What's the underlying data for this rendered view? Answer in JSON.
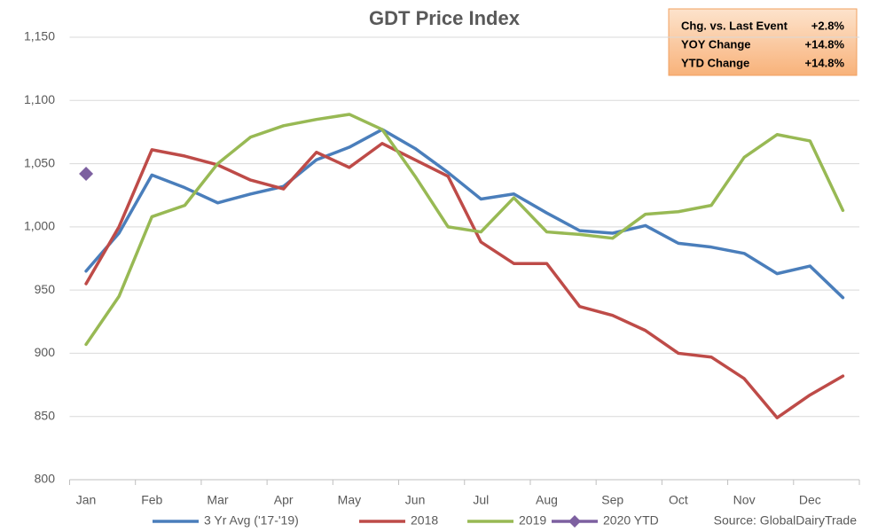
{
  "chart_data": {
    "type": "line",
    "title": "GDT Price Index",
    "categories": [
      "Jan",
      null,
      "Feb",
      null,
      "Mar",
      null,
      "Apr",
      null,
      "May",
      null,
      "Jun",
      null,
      "Jul",
      null,
      "Aug",
      null,
      "Sep",
      null,
      "Oct",
      null,
      "Nov",
      null,
      "Dec",
      null
    ],
    "series": [
      {
        "name": "3 Yr Avg ('17-'19)",
        "color": "#4a7ebb",
        "values": [
          965,
          995,
          1041,
          1031,
          1019,
          1026,
          1032,
          1053,
          1063,
          1077,
          1062,
          1043,
          1022,
          1026,
          1011,
          997,
          995,
          1001,
          987,
          984,
          979,
          963,
          969,
          944
        ]
      },
      {
        "name": "2018",
        "color": "#be4b48",
        "values": [
          955,
          1000,
          1061,
          1056,
          1049,
          1037,
          1030,
          1059,
          1047,
          1066,
          1053,
          1040,
          988,
          971,
          971,
          937,
          930,
          918,
          900,
          897,
          880,
          849,
          867,
          882
        ]
      },
      {
        "name": "2019",
        "color": "#98b954",
        "values": [
          907,
          945,
          1008,
          1017,
          1050,
          1071,
          1080,
          1085,
          1089,
          1077,
          1040,
          1000,
          996,
          1023,
          996,
          994,
          991,
          1010,
          1012,
          1017,
          1055,
          1073,
          1068,
          1013
        ]
      },
      {
        "name": "2020 YTD",
        "color": "#7d60a0",
        "marker": "diamond",
        "values": [
          1042,
          null,
          null,
          null,
          null,
          null,
          null,
          null,
          null,
          null,
          null,
          null,
          null,
          null,
          null,
          null,
          null,
          null,
          null,
          null,
          null,
          null,
          null,
          null
        ]
      }
    ],
    "ylim": [
      800,
      1150
    ],
    "yticks": [
      {
        "value": 800,
        "label": "800"
      },
      {
        "value": 850,
        "label": "850"
      },
      {
        "value": 900,
        "label": "900"
      },
      {
        "value": 950,
        "label": "950"
      },
      {
        "value": 1000,
        "label": "1,000"
      },
      {
        "value": 1050,
        "label": "1,050"
      },
      {
        "value": 1100,
        "label": "1,100"
      },
      {
        "value": 1150,
        "label": "1,150"
      }
    ],
    "grid": true,
    "info_box": [
      {
        "label": "Chg. vs. Last Event",
        "value": "+2.8%"
      },
      {
        "label": "YOY Change",
        "value": "+14.8%"
      },
      {
        "label": "YTD Change",
        "value": "+14.8%"
      }
    ],
    "source": "Source: GlobalDairyTrade"
  }
}
